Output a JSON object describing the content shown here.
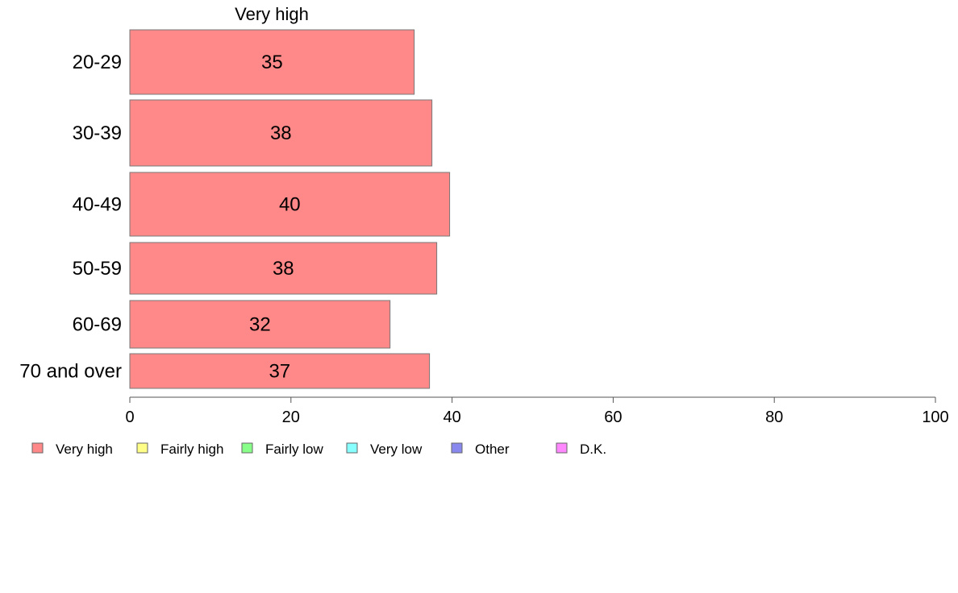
{
  "chart_data": {
    "type": "bar",
    "orientation": "horizontal",
    "series_header": "Very high",
    "categories": [
      "20-29",
      "30-39",
      "40-49",
      "50-59",
      "60-69",
      "70 and over"
    ],
    "series": [
      {
        "name": "Very high",
        "color": "#ff8888",
        "values": [
          35.3,
          37.5,
          39.7,
          38.1,
          32.3,
          37.2
        ]
      }
    ],
    "data_labels": [
      "35",
      "38",
      "40",
      "38",
      "32",
      "37"
    ],
    "xlim": [
      0,
      100
    ],
    "xticks": [
      0,
      20,
      40,
      60,
      80,
      100
    ],
    "xtick_labels": [
      "0",
      "20",
      "40",
      "60",
      "80",
      "100"
    ],
    "grid": false,
    "legend": {
      "placement": "bottom",
      "entries": [
        {
          "label": "Very high",
          "color": "#ff8888"
        },
        {
          "label": "Fairly high",
          "color": "#ffff88"
        },
        {
          "label": "Fairly low",
          "color": "#88ff88"
        },
        {
          "label": "Very low",
          "color": "#88ffff"
        },
        {
          "label": "Other",
          "color": "#8888ee"
        },
        {
          "label": "D.K.",
          "color": "#ff88ff"
        }
      ]
    }
  }
}
